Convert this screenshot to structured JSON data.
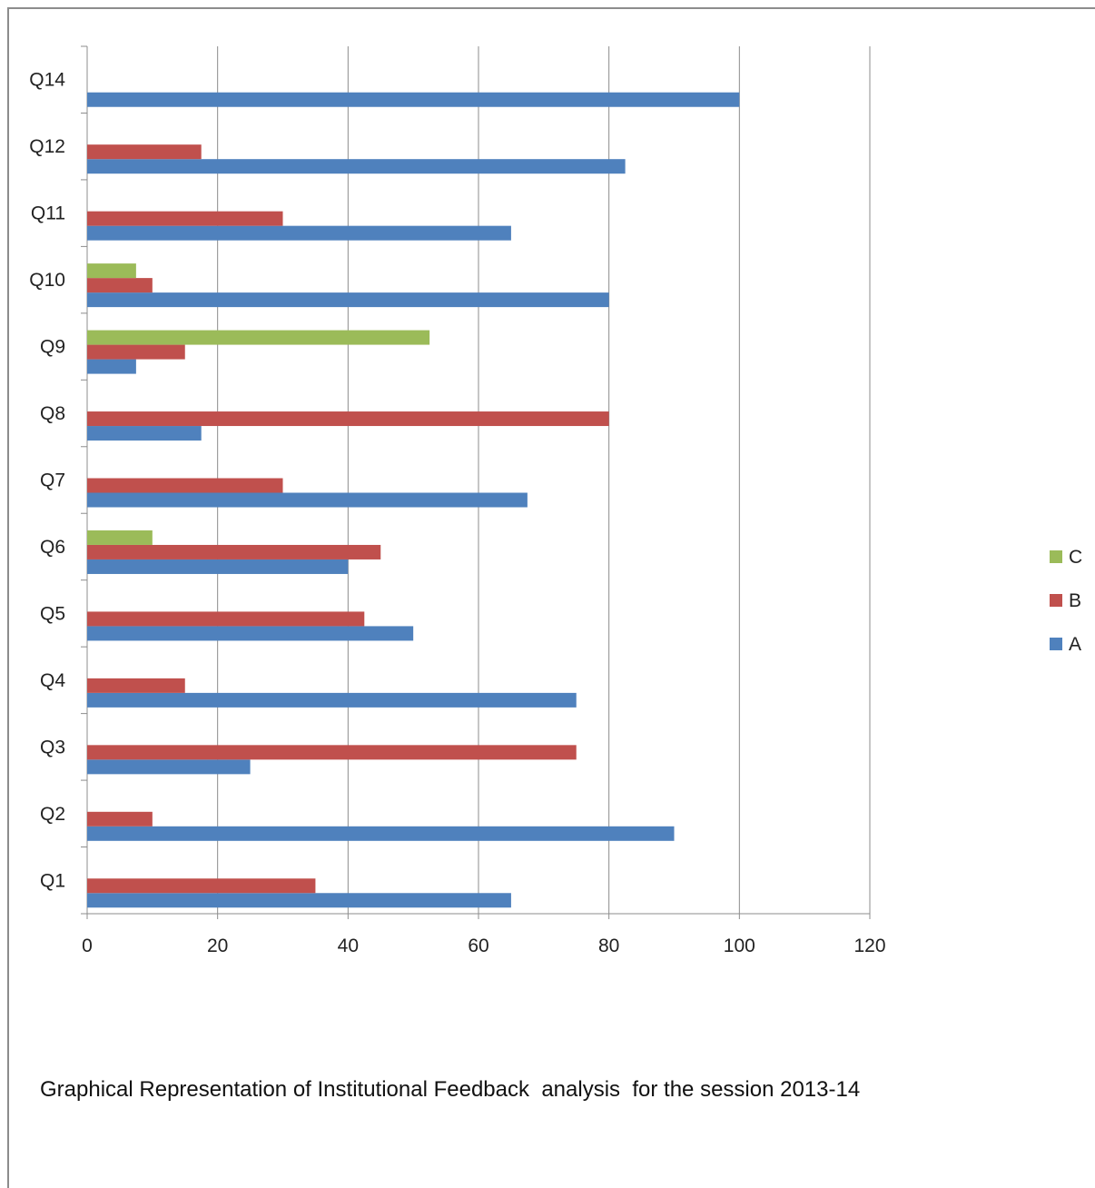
{
  "caption": "Graphical Representation of Institutional Feedback  analysis  for the session 2013-14",
  "chart_data": {
    "type": "bar",
    "orientation": "horizontal",
    "categories": [
      "Q1",
      "Q2",
      "Q3",
      "Q4",
      "Q5",
      "Q6",
      "Q7",
      "Q8",
      "Q9",
      "Q10",
      "Q11",
      "Q12",
      "Q14"
    ],
    "series": [
      {
        "name": "A",
        "color": "#4f81bd",
        "values": [
          65,
          90,
          25,
          75,
          50,
          40,
          67.5,
          17.5,
          7.5,
          80,
          65,
          82.5,
          100
        ]
      },
      {
        "name": "B",
        "color": "#c0504d",
        "values": [
          35,
          10,
          75,
          15,
          42.5,
          45,
          30,
          80,
          15,
          10,
          30,
          17.5,
          0
        ]
      },
      {
        "name": "C",
        "color": "#9bbb59",
        "values": [
          0,
          0,
          0,
          0,
          0,
          10,
          0,
          0,
          52.5,
          7.5,
          0,
          0,
          0
        ]
      }
    ],
    "x_ticks": [
      "0",
      "20",
      "40",
      "60",
      "80",
      "100",
      "120"
    ],
    "xlim": [
      0,
      120
    ],
    "grid": "vertical gridlines",
    "legend": {
      "placement": "right",
      "order": [
        "C",
        "B",
        "A"
      ]
    }
  }
}
